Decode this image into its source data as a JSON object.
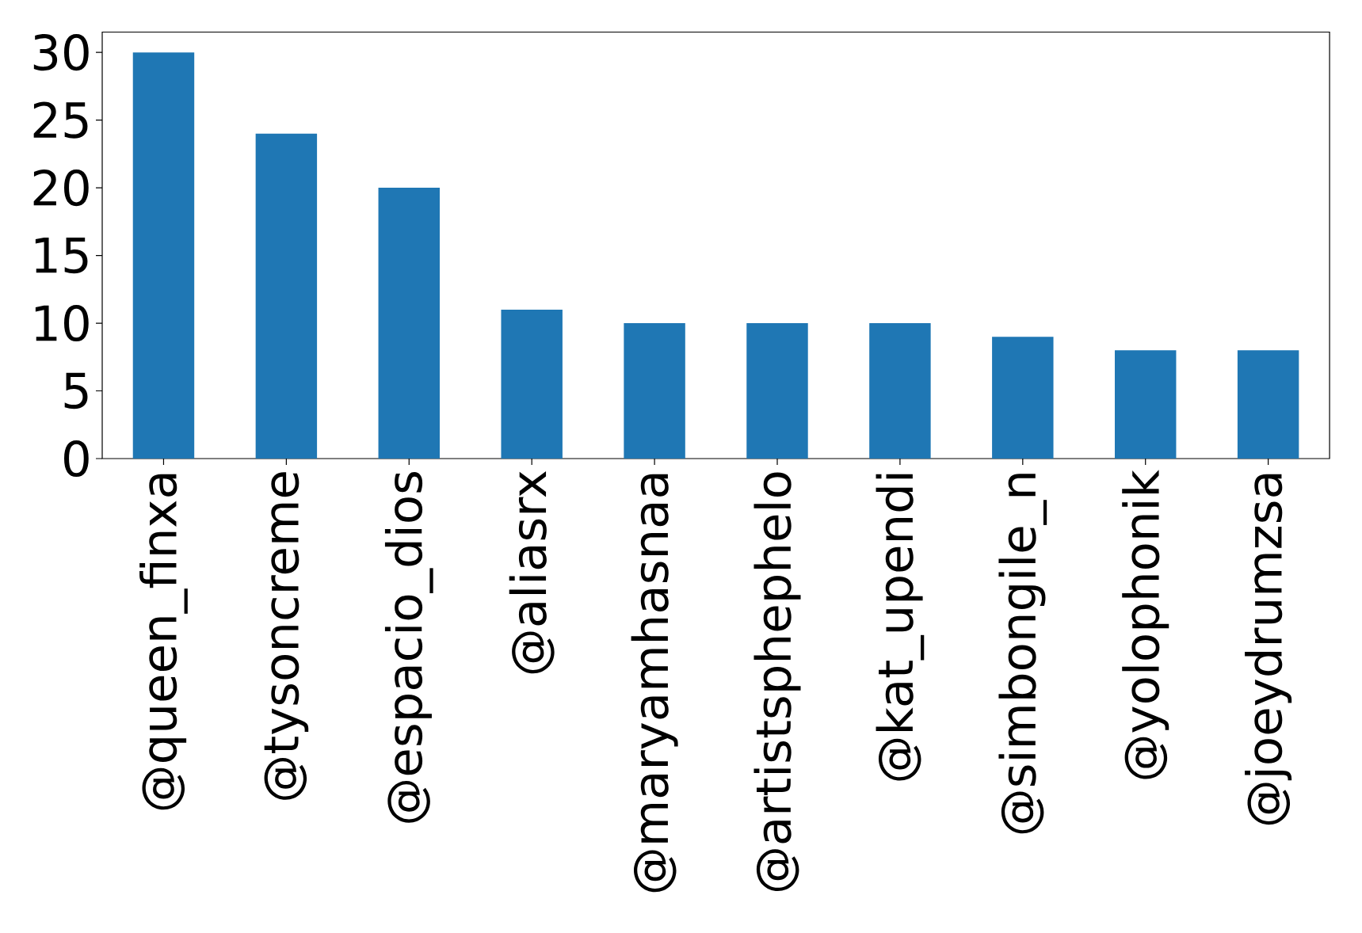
{
  "chart_data": {
    "type": "bar",
    "categories": [
      "@queen_finxa",
      "@tysoncreme",
      "@espacio_dios",
      "@aliasrx",
      "@maryamhasnaa",
      "@artistsphephelo",
      "@kat_upendi",
      "@simbongile_n",
      "@yolophonik",
      "@joeydrumzsa"
    ],
    "values": [
      30,
      24,
      20,
      11,
      10,
      10,
      10,
      9,
      8,
      8
    ],
    "color": "#1f77b4",
    "ylim": [
      0,
      31.5
    ],
    "yticks": [
      0,
      5,
      10,
      15,
      20,
      25,
      30
    ]
  }
}
